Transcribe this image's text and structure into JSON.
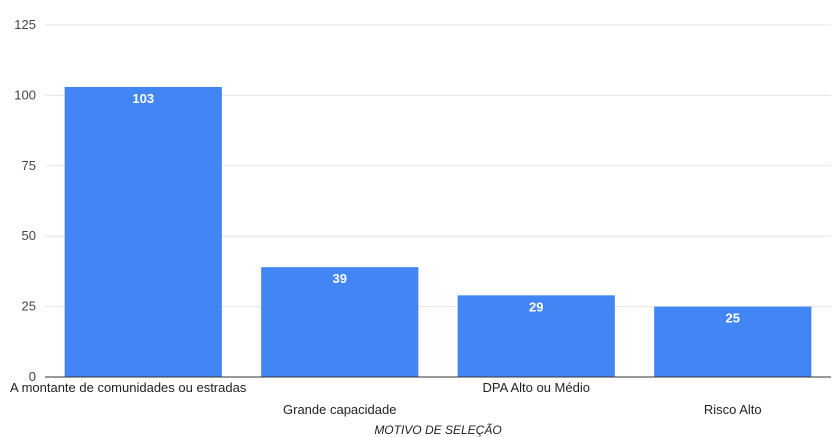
{
  "chart_data": {
    "type": "bar",
    "categories": [
      "A montante de comunidades ou estradas",
      "Grande capacidade",
      "DPA Alto ou Médio",
      "Risco Alto"
    ],
    "values": [
      103,
      39,
      29,
      25
    ],
    "data_labels": [
      "103",
      "39",
      "29",
      "25"
    ],
    "title": "",
    "xlabel": "MOTIVO DE SELEÇÃO",
    "ylabel": "",
    "ylim": [
      0,
      125
    ],
    "yticks": [
      0,
      25,
      50,
      75,
      100,
      125
    ],
    "grid": true,
    "legend": "none",
    "bar_color": "#4285f4"
  }
}
